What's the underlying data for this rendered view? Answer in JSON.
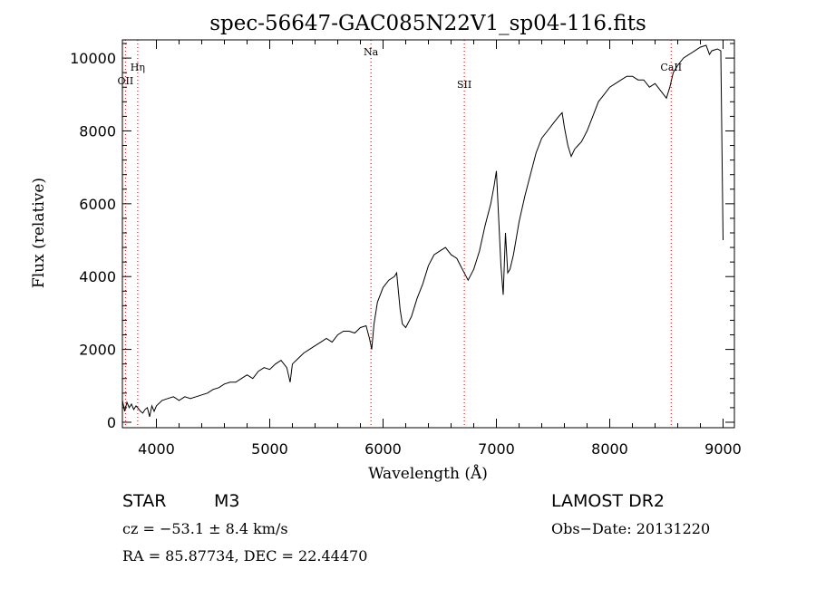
{
  "chart_data": {
    "type": "line",
    "title": "spec-56647-GAC085N22V1_sp04-116.fits",
    "xlabel": "Wavelength (Å)",
    "ylabel": "Flux (relative)",
    "xlim": [
      3700,
      9100
    ],
    "ylim": [
      -150,
      10500
    ],
    "x_ticks": [
      4000,
      5000,
      6000,
      7000,
      8000,
      9000
    ],
    "y_ticks": [
      0,
      2000,
      4000,
      6000,
      8000,
      10000
    ],
    "grid": false,
    "series": [
      {
        "x": [
          3700,
          3720,
          3740,
          3760,
          3780,
          3800,
          3820,
          3840,
          3860,
          3880,
          3900,
          3920,
          3940,
          3960,
          3980,
          4000,
          4050,
          4100,
          4150,
          4200,
          4250,
          4300,
          4350,
          4400,
          4450,
          4500,
          4550,
          4600,
          4650,
          4700,
          4750,
          4800,
          4850,
          4900,
          4950,
          5000,
          5050,
          5100,
          5150,
          5180,
          5200,
          5250,
          5300,
          5350,
          5400,
          5450,
          5500,
          5550,
          5600,
          5650,
          5700,
          5750,
          5800,
          5850,
          5880,
          5900,
          5920,
          5950,
          6000,
          6050,
          6100,
          6120,
          6150,
          6170,
          6200,
          6250,
          6300,
          6350,
          6400,
          6450,
          6500,
          6550,
          6600,
          6650,
          6700,
          6750,
          6800,
          6850,
          6900,
          6950,
          6980,
          7000,
          7020,
          7040,
          7060,
          7080,
          7100,
          7120,
          7150,
          7200,
          7250,
          7300,
          7350,
          7400,
          7450,
          7500,
          7550,
          7580,
          7600,
          7630,
          7660,
          7690,
          7720,
          7750,
          7800,
          7850,
          7900,
          7950,
          8000,
          8050,
          8100,
          8150,
          8200,
          8250,
          8300,
          8350,
          8400,
          8450,
          8500,
          8530,
          8560,
          8600,
          8650,
          8700,
          8750,
          8800,
          8850,
          8880,
          8900,
          8950,
          8980,
          9000
        ],
        "y": [
          600,
          300,
          550,
          400,
          500,
          350,
          450,
          380,
          300,
          250,
          350,
          400,
          150,
          450,
          300,
          450,
          600,
          650,
          700,
          600,
          700,
          650,
          700,
          750,
          800,
          900,
          950,
          1050,
          1100,
          1100,
          1200,
          1300,
          1200,
          1400,
          1500,
          1450,
          1600,
          1700,
          1500,
          1100,
          1600,
          1750,
          1900,
          2000,
          2100,
          2200,
          2300,
          2200,
          2400,
          2500,
          2500,
          2450,
          2600,
          2650,
          2300,
          2000,
          2700,
          3300,
          3700,
          3900,
          4000,
          4100,
          3100,
          2700,
          2600,
          2900,
          3400,
          3800,
          4300,
          4600,
          4700,
          4800,
          4600,
          4500,
          4200,
          3900,
          4200,
          4700,
          5400,
          6000,
          6500,
          6900,
          5600,
          4300,
          3500,
          5200,
          4100,
          4200,
          4600,
          5500,
          6200,
          6800,
          7400,
          7800,
          8000,
          8200,
          8400,
          8500,
          8100,
          7600,
          7300,
          7500,
          7600,
          7700,
          8000,
          8400,
          8800,
          9000,
          9200,
          9300,
          9400,
          9500,
          9500,
          9400,
          9400,
          9200,
          9300,
          9100,
          8900,
          9200,
          9600,
          9800,
          10000,
          10100,
          10200,
          10300,
          10350,
          10100,
          10200,
          10250,
          10200,
          5000
        ]
      }
    ],
    "lines": [
      {
        "label": "OII",
        "x": 3727
      },
      {
        "label": "Hη",
        "x": 3835
      },
      {
        "label": "Na",
        "x": 5893
      },
      {
        "label": "SII",
        "x": 6717
      },
      {
        "label": "CaII",
        "x": 8542
      }
    ]
  },
  "info": {
    "object_class": "STAR",
    "subclass": "M3",
    "cz": "cz = −53.1 ± 8.4 km/s",
    "radec": "RA =  85.87734, DEC =  22.44470",
    "survey": "LAMOST DR2",
    "obsdate": "Obs−Date: 20131220"
  },
  "colors": {
    "line_marker": "#cc0000",
    "spectrum": "#000000",
    "axis": "#000000"
  }
}
